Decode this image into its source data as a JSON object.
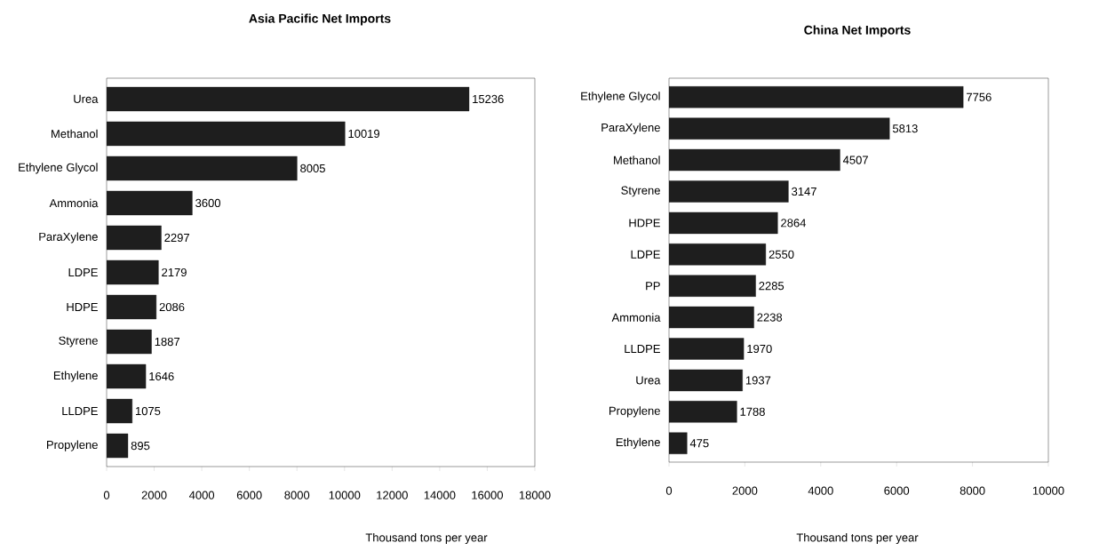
{
  "chart_data": [
    {
      "type": "bar",
      "orientation": "horizontal",
      "title": "Asia Pacific Net Imports",
      "xlabel": "Thousand tons per year",
      "categories": [
        "Urea",
        "Methanol",
        "Ethylene Glycol",
        "Ammonia",
        "ParaXylene",
        "LDPE",
        "HDPE",
        "Styrene",
        "Ethylene",
        "LLDPE",
        "Propylene"
      ],
      "values": [
        15236,
        10019,
        8005,
        3600,
        2297,
        2179,
        2086,
        1887,
        1646,
        1075,
        895
      ],
      "color": "#1e1e1e",
      "data_labels": true,
      "xlim": [
        0,
        18000
      ],
      "xticks": [
        0,
        2000,
        4000,
        6000,
        8000,
        10000,
        12000,
        14000,
        16000,
        18000
      ]
    },
    {
      "type": "bar",
      "orientation": "horizontal",
      "title": "China Net Imports",
      "xlabel": "Thousand tons per year",
      "categories": [
        "Ethylene Glycol",
        "ParaXylene",
        "Methanol",
        "Styrene",
        "HDPE",
        "LDPE",
        "PP",
        "Ammonia",
        "LLDPE",
        "Urea",
        "Propylene",
        "Ethylene"
      ],
      "values": [
        7756,
        5813,
        4507,
        3147,
        2864,
        2550,
        2285,
        2238,
        1970,
        1937,
        1788,
        475
      ],
      "color": "#1e1e1e",
      "data_labels": true,
      "xlim": [
        0,
        10000
      ],
      "xticks": [
        0,
        2000,
        4000,
        6000,
        8000,
        10000
      ]
    }
  ]
}
